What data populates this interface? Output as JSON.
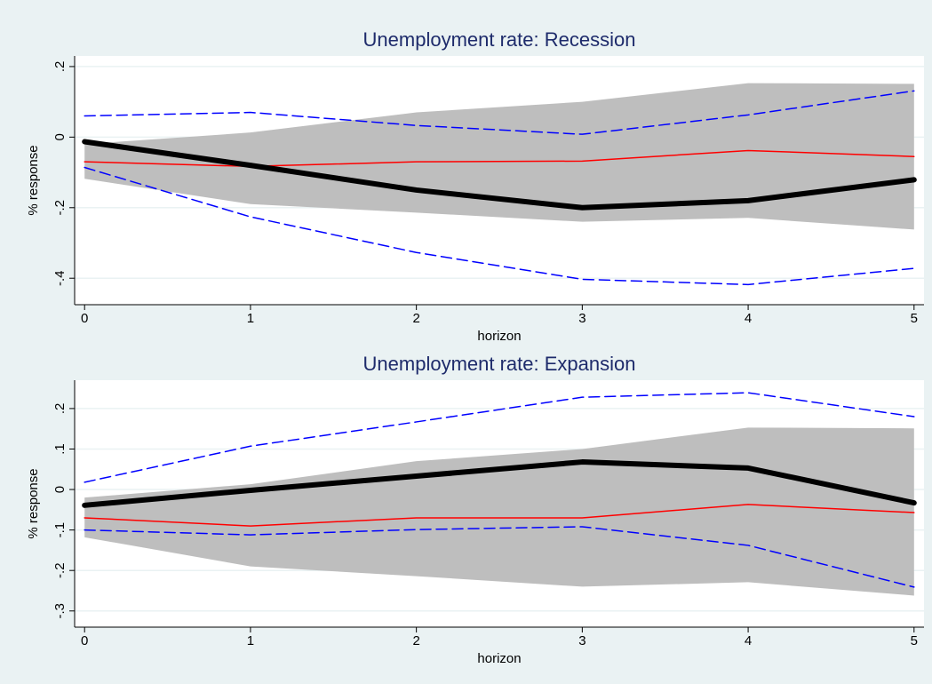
{
  "chart_data": [
    {
      "type": "line",
      "title": "Unemployment rate: Recession",
      "xlabel": "horizon",
      "ylabel": "% response",
      "x": [
        0,
        1,
        2,
        3,
        4,
        5
      ],
      "xlim": [
        -0.06,
        5.06
      ],
      "xticks": [
        0,
        1,
        2,
        3,
        4,
        5
      ],
      "ylim": [
        -0.475,
        0.23
      ],
      "yticks": [
        {
          "value": -0.4,
          "label": "-.4"
        },
        {
          "value": -0.2,
          "label": "-.2"
        },
        0,
        {
          "value": 0.2,
          "label": ".2"
        }
      ],
      "grid": true,
      "band": {
        "color": "#bebebe",
        "upper": [
          -0.02,
          0.013,
          0.07,
          0.1,
          0.153,
          0.151
        ],
        "lower": [
          -0.118,
          -0.19,
          -0.214,
          -0.24,
          -0.229,
          -0.262
        ]
      },
      "series": [
        {
          "color": "#ff0000",
          "width": 1.5,
          "dash": false,
          "values": [
            -0.07,
            -0.083,
            -0.07,
            -0.068,
            -0.038,
            -0.055
          ]
        },
        {
          "color": "#0000ff",
          "width": 1.5,
          "dash": true,
          "values": [
            0.06,
            0.07,
            0.033,
            0.008,
            0.063,
            0.131
          ]
        },
        {
          "color": "#0000ff",
          "width": 1.5,
          "dash": true,
          "values": [
            -0.086,
            -0.226,
            -0.327,
            -0.403,
            -0.418,
            -0.372
          ]
        },
        {
          "color": "#000000",
          "width": 6,
          "dash": false,
          "values": [
            -0.013,
            -0.08,
            -0.15,
            -0.2,
            -0.18,
            -0.121
          ]
        }
      ]
    },
    {
      "type": "line",
      "title": "Unemployment rate: Expansion",
      "xlabel": "horizon",
      "ylabel": "% response",
      "x": [
        0,
        1,
        2,
        3,
        4,
        5
      ],
      "xlim": [
        -0.06,
        5.06
      ],
      "xticks": [
        0,
        1,
        2,
        3,
        4,
        5
      ],
      "ylim": [
        -0.34,
        0.27
      ],
      "yticks": [
        {
          "value": -0.3,
          "label": "-.3"
        },
        {
          "value": -0.2,
          "label": "-.2"
        },
        {
          "value": -0.1,
          "label": "-.1"
        },
        0,
        {
          "value": 0.1,
          "label": ".1"
        },
        {
          "value": 0.2,
          "label": ".2"
        }
      ],
      "grid": true,
      "band": {
        "color": "#bebebe",
        "upper": [
          -0.02,
          0.013,
          0.07,
          0.1,
          0.153,
          0.151
        ],
        "lower": [
          -0.118,
          -0.19,
          -0.214,
          -0.24,
          -0.229,
          -0.262
        ]
      },
      "series": [
        {
          "color": "#ff0000",
          "width": 1.5,
          "dash": false,
          "values": [
            -0.07,
            -0.09,
            -0.07,
            -0.07,
            -0.037,
            -0.057
          ]
        },
        {
          "color": "#0000ff",
          "width": 1.5,
          "dash": true,
          "values": [
            0.018,
            0.107,
            0.167,
            0.228,
            0.239,
            0.18
          ]
        },
        {
          "color": "#0000ff",
          "width": 1.5,
          "dash": true,
          "values": [
            -0.1,
            -0.112,
            -0.099,
            -0.092,
            -0.138,
            -0.241
          ]
        },
        {
          "color": "#000000",
          "width": 6,
          "dash": false,
          "values": [
            -0.039,
            -0.002,
            0.033,
            0.068,
            0.053,
            -0.033
          ]
        }
      ]
    }
  ]
}
